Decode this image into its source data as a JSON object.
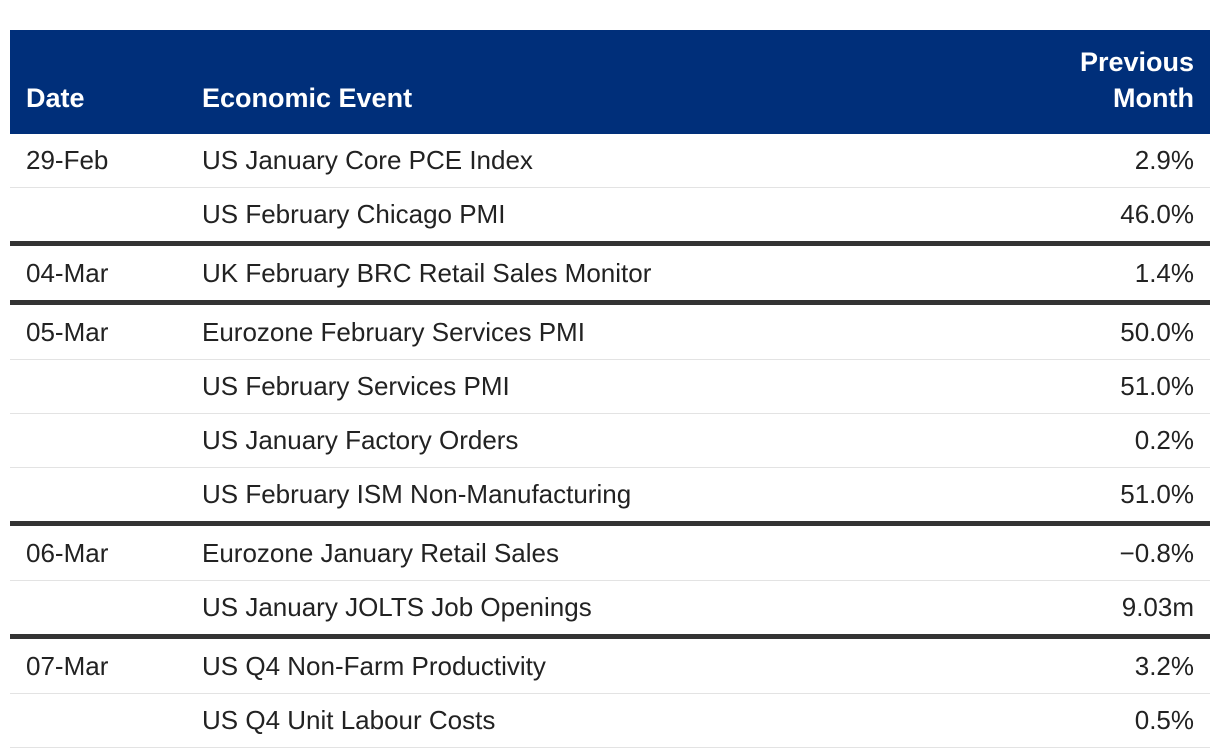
{
  "table": {
    "header": {
      "date": "Date",
      "event": "Economic Event",
      "previous_line1": "Previous",
      "previous_line2": "Month"
    },
    "rows": [
      {
        "date": "29-Feb",
        "event": "US January Core PCE Index",
        "previous": "2.9%"
      },
      {
        "date": "",
        "event": "US February Chicago PMI",
        "previous": "46.0%"
      },
      {
        "date": "04-Mar",
        "event": "UK February BRC Retail Sales Monitor",
        "previous": "1.4%"
      },
      {
        "date": "05-Mar",
        "event": "Eurozone February Services PMI",
        "previous": "50.0%"
      },
      {
        "date": "",
        "event": "US February Services PMI",
        "previous": "51.0%"
      },
      {
        "date": "",
        "event": "US January Factory Orders",
        "previous": "0.2%"
      },
      {
        "date": "",
        "event": "US February ISM Non-Manufacturing",
        "previous": "51.0%"
      },
      {
        "date": "06-Mar",
        "event": "Eurozone January Retail Sales",
        "previous": "−0.8%"
      },
      {
        "date": "",
        "event": "US January JOLTS Job Openings",
        "previous": "9.03m"
      },
      {
        "date": "07-Mar",
        "event": "US Q4 Non-Farm Productivity",
        "previous": "3.2%"
      },
      {
        "date": "",
        "event": "US Q4 Unit Labour Costs",
        "previous": "0.5%"
      }
    ]
  }
}
